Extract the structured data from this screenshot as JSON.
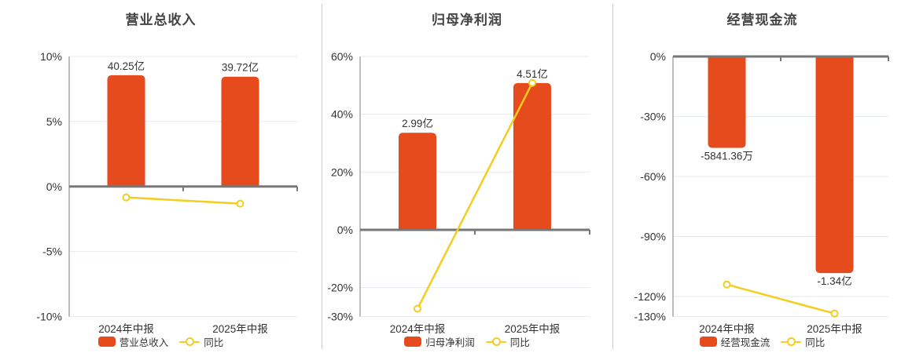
{
  "colors": {
    "bar": "#E54B1C",
    "line": "#F3CE1F",
    "grid": "#E4EBF2",
    "zero_axis": "#777777",
    "axis_light": "#AAAAAA",
    "text": "#333333",
    "title": "#444444",
    "divider": "#CCCCCC",
    "marker_fill": "#FFFFFF"
  },
  "chart_data": [
    {
      "type": "bar",
      "title": "营业总收入",
      "categories": [
        "2024年中报",
        "2025年中报"
      ],
      "bar_series": {
        "name": "营业总收入",
        "value_labels": [
          "40.25亿",
          "39.72亿"
        ],
        "plotted_pct": [
          8.56,
          8.45
        ]
      },
      "line_series": {
        "name": "同比",
        "values_pct": [
          -0.84,
          -1.32
        ]
      },
      "ylim": [
        -10,
        10
      ],
      "yticks": [
        10,
        5,
        0,
        -5,
        -10
      ],
      "ytick_labels": [
        "10%",
        "5%",
        "0%",
        "-5%",
        "-10%"
      ],
      "grid": true,
      "legend_position": "bottom"
    },
    {
      "type": "bar",
      "title": "归母净利润",
      "categories": [
        "2024年中报",
        "2025年中报"
      ],
      "bar_series": {
        "name": "归母净利润",
        "value_labels": [
          "2.99亿",
          "4.51亿"
        ],
        "plotted_pct": [
          33.6,
          50.8
        ]
      },
      "line_series": {
        "name": "同比",
        "values_pct": [
          -27.3,
          50.84
        ]
      },
      "ylim": [
        -30,
        60
      ],
      "yticks": [
        60,
        40,
        20,
        0,
        -20,
        -30
      ],
      "ytick_labels": [
        "60%",
        "40%",
        "20%",
        "0%",
        "-20%",
        "-30%"
      ],
      "grid": true,
      "legend_position": "bottom"
    },
    {
      "type": "bar",
      "title": "经营现金流",
      "categories": [
        "2024年中报",
        "2025年中报"
      ],
      "bar_series": {
        "name": "经营现金流",
        "value_labels": [
          "-5841.36万",
          "-1.34亿"
        ],
        "plotted_pct": [
          -45.7,
          -108.3
        ]
      },
      "line_series": {
        "name": "同比",
        "values_pct": [
          -114,
          -128.5
        ]
      },
      "ylim": [
        -130,
        0
      ],
      "yticks": [
        0,
        -30,
        -60,
        -90,
        -120,
        -130
      ],
      "ytick_labels": [
        "0%",
        "-30%",
        "-60%",
        "-90%",
        "-120%",
        "-130%"
      ],
      "grid": true,
      "legend_position": "bottom"
    }
  ]
}
